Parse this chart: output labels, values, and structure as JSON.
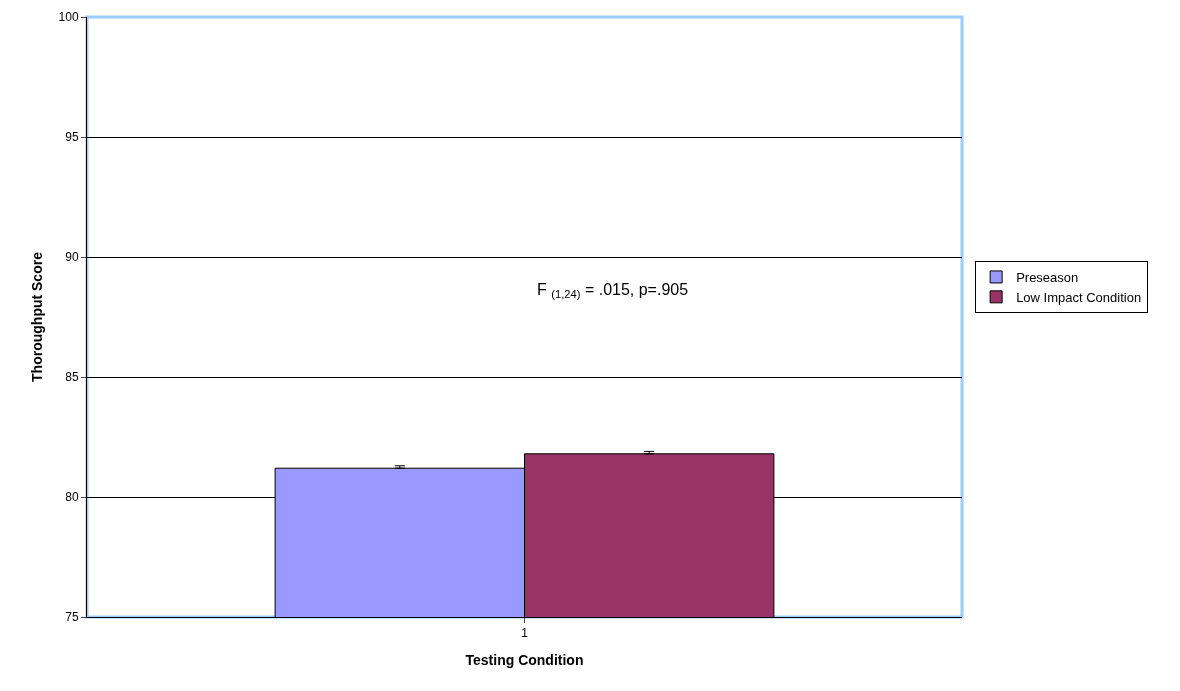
{
  "chart_data": {
    "type": "bar",
    "xlabel": "Testing Condition",
    "ylabel": "Thoroughput Score",
    "categories": [
      "1"
    ],
    "series": [
      {
        "name": "Preseason",
        "color": "#9999ff",
        "values": [
          81.2
        ],
        "errors": [
          [
            81.2,
            81.3
          ]
        ]
      },
      {
        "name": "Low Impact Condition",
        "color": "#993366",
        "values": [
          81.8
        ],
        "errors": [
          [
            81.8,
            81.9
          ]
        ]
      }
    ],
    "ylim": [
      75,
      100
    ],
    "yticks": [
      75,
      80,
      85,
      90,
      95,
      100
    ],
    "grid": "y",
    "legend": "right",
    "annotations": [
      "F $_{(1,24)}$ = .015, p=.905"
    ]
  }
}
